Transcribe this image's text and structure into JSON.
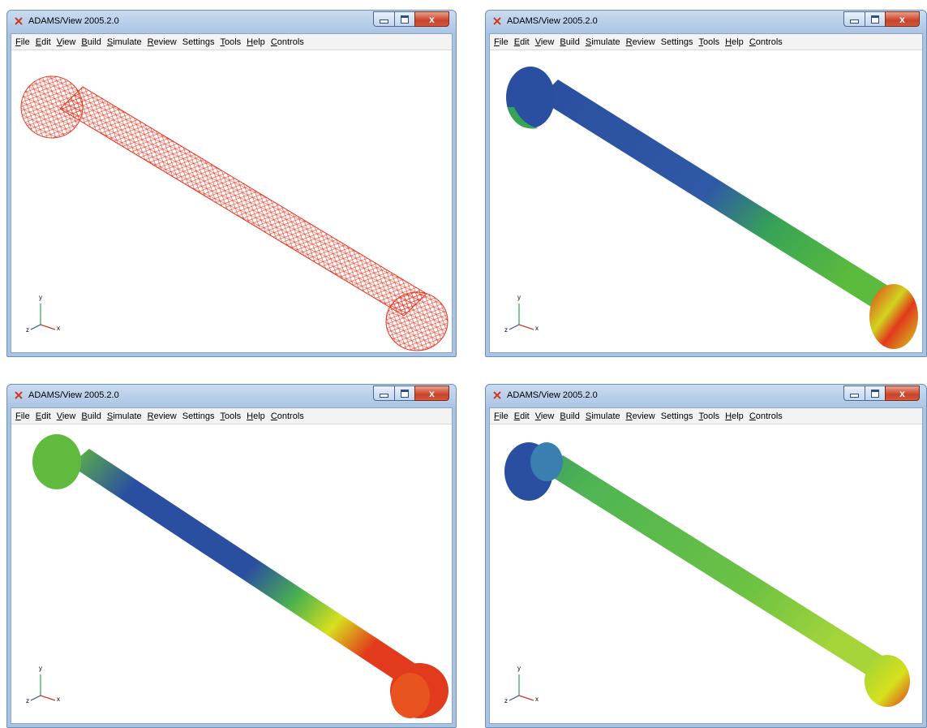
{
  "window": {
    "title": "ADAMS/View 2005.2.0",
    "minimize_label": "–",
    "maximize_label": "□",
    "close_label": "x"
  },
  "menu": [
    {
      "accel": "F",
      "rest": "ile"
    },
    {
      "accel": "E",
      "rest": "dit"
    },
    {
      "accel": "V",
      "rest": "iew"
    },
    {
      "accel": "B",
      "rest": "uild"
    },
    {
      "accel": "S",
      "rest": "imulate"
    },
    {
      "accel": "R",
      "rest": "eview"
    },
    {
      "accel": "",
      "rest": "Settings"
    },
    {
      "accel": "T",
      "rest": "ools"
    },
    {
      "accel": "H",
      "rest": "elp"
    },
    {
      "accel": "C",
      "rest": "ontrols"
    }
  ],
  "triad": {
    "y": "y",
    "x": "x",
    "z": "z"
  },
  "panels": [
    {
      "render": "wireframe-mesh",
      "color": "#e8321e"
    },
    {
      "render": "contour-fringe",
      "colors": [
        "#2b4fa0",
        "#37a455",
        "#d1d41e",
        "#e23a1c"
      ]
    },
    {
      "render": "contour-fringe",
      "colors": [
        "#60ba3e",
        "#2b4fa0",
        "#d7e01d",
        "#e23a1c"
      ]
    },
    {
      "render": "contour-fringe",
      "colors": [
        "#2b4fa0",
        "#4eb453",
        "#9bd33a",
        "#e23a1c"
      ]
    }
  ]
}
